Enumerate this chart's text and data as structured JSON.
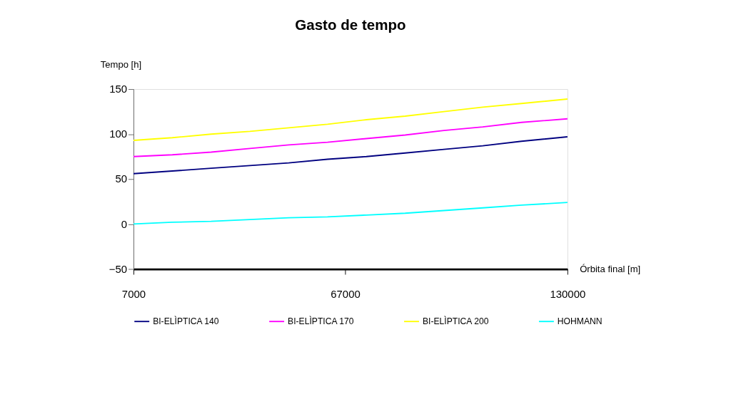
{
  "chart_data": {
    "type": "line",
    "title": "Gasto de tempo",
    "xlabel": "Órbita final [m]",
    "ylabel": "Tempo [h]",
    "x": [
      7000,
      18000,
      29000,
      40000,
      51000,
      62000,
      73000,
      84000,
      95000,
      106000,
      117000,
      130000
    ],
    "series": [
      {
        "name": "BI-ELÌPTICA 140",
        "color": "#000080",
        "values": [
          56,
          59,
          62,
          65,
          68,
          72,
          75,
          79,
          83,
          87,
          92,
          97
        ]
      },
      {
        "name": "BI-ELÌPTICA 170",
        "color": "#ff00ff",
        "values": [
          75,
          77,
          80,
          84,
          88,
          91,
          95,
          99,
          104,
          108,
          113,
          117
        ]
      },
      {
        "name": "BI-ELÌPTICA 200",
        "color": "#ffff00",
        "values": [
          93,
          96,
          100,
          103,
          107,
          111,
          116,
          120,
          125,
          130,
          134,
          139
        ]
      },
      {
        "name": "HOHMANN",
        "color": "#00ffff",
        "values": [
          0,
          2,
          3,
          5,
          7,
          8,
          10,
          12,
          15,
          18,
          21,
          24
        ]
      }
    ],
    "xlim": [
      7000,
      130000
    ],
    "xticks": [
      7000,
      67000,
      130000
    ],
    "ylim": [
      -50,
      150
    ],
    "yticks": [
      -50,
      0,
      50,
      100,
      150
    ],
    "grid": false,
    "legend": "bottom",
    "marker": "none",
    "line_style": "solid"
  }
}
